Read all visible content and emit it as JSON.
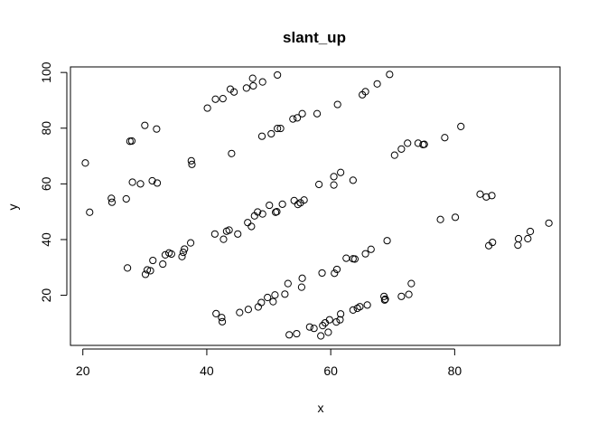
{
  "chart_data": {
    "type": "scatter",
    "title": "slant_up",
    "xlabel": "x",
    "ylabel": "y",
    "xlim": [
      18,
      97
    ],
    "ylim": [
      2,
      102
    ],
    "x_ticks": [
      20,
      40,
      60,
      80
    ],
    "y_ticks": [
      20,
      40,
      60,
      80,
      100
    ],
    "grid": false,
    "marker": "open-circle",
    "points": [
      [
        20.4,
        67.5
      ],
      [
        21.1,
        49.8
      ],
      [
        24.6,
        54.8
      ],
      [
        24.7,
        53.4
      ],
      [
        27.0,
        54.6
      ],
      [
        27.2,
        29.8
      ],
      [
        27.6,
        75.3
      ],
      [
        27.9,
        75.4
      ],
      [
        28.0,
        60.6
      ],
      [
        29.3,
        60.0
      ],
      [
        30.0,
        81.0
      ],
      [
        30.1,
        27.5
      ],
      [
        30.4,
        29.1
      ],
      [
        30.9,
        28.8
      ],
      [
        31.2,
        61.1
      ],
      [
        31.3,
        32.5
      ],
      [
        31.9,
        79.7
      ],
      [
        32.0,
        60.3
      ],
      [
        32.9,
        31.2
      ],
      [
        33.3,
        34.5
      ],
      [
        33.9,
        35.2
      ],
      [
        34.3,
        34.8
      ],
      [
        36.0,
        33.9
      ],
      [
        36.2,
        35.4
      ],
      [
        36.4,
        36.6
      ],
      [
        37.4,
        38.8
      ],
      [
        37.5,
        68.3
      ],
      [
        37.6,
        67.0
      ],
      [
        40.1,
        87.2
      ],
      [
        41.3,
        42.0
      ],
      [
        41.4,
        90.4
      ],
      [
        41.5,
        13.4
      ],
      [
        42.4,
        12.0
      ],
      [
        42.5,
        10.5
      ],
      [
        42.6,
        90.6
      ],
      [
        42.7,
        40.1
      ],
      [
        43.2,
        43.0
      ],
      [
        43.6,
        43.4
      ],
      [
        43.8,
        94.0
      ],
      [
        44.0,
        70.9
      ],
      [
        44.4,
        93.0
      ],
      [
        45.0,
        42.0
      ],
      [
        45.3,
        13.8
      ],
      [
        46.4,
        94.4
      ],
      [
        46.6,
        46.1
      ],
      [
        46.7,
        14.9
      ],
      [
        47.2,
        44.7
      ],
      [
        47.4,
        97.9
      ],
      [
        47.5,
        95.2
      ],
      [
        47.7,
        48.5
      ],
      [
        48.2,
        49.9
      ],
      [
        48.3,
        15.8
      ],
      [
        48.8,
        17.4
      ],
      [
        48.9,
        77.1
      ],
      [
        49.0,
        96.6
      ],
      [
        49.0,
        49.2
      ],
      [
        49.8,
        19.2
      ],
      [
        50.1,
        52.3
      ],
      [
        50.4,
        78.0
      ],
      [
        50.7,
        17.7
      ],
      [
        51.0,
        20.1
      ],
      [
        51.1,
        49.8
      ],
      [
        51.3,
        50.0
      ],
      [
        51.4,
        79.9
      ],
      [
        51.4,
        99.1
      ],
      [
        51.9,
        79.9
      ],
      [
        52.2,
        52.7
      ],
      [
        52.6,
        20.4
      ],
      [
        53.1,
        24.2
      ],
      [
        53.3,
        5.8
      ],
      [
        53.9,
        83.3
      ],
      [
        54.1,
        54.0
      ],
      [
        54.5,
        6.2
      ],
      [
        54.6,
        83.7
      ],
      [
        54.7,
        52.6
      ],
      [
        55.1,
        53.2
      ],
      [
        55.3,
        22.9
      ],
      [
        55.4,
        26.1
      ],
      [
        55.4,
        85.2
      ],
      [
        55.7,
        54.2
      ],
      [
        56.6,
        8.6
      ],
      [
        57.3,
        8.1
      ],
      [
        57.8,
        85.2
      ],
      [
        58.1,
        59.8
      ],
      [
        58.4,
        5.4
      ],
      [
        58.6,
        28.0
      ],
      [
        58.7,
        9.1
      ],
      [
        59.1,
        10.1
      ],
      [
        59.6,
        6.7
      ],
      [
        59.8,
        11.2
      ],
      [
        60.5,
        62.6
      ],
      [
        60.5,
        59.6
      ],
      [
        60.6,
        27.9
      ],
      [
        60.9,
        10.4
      ],
      [
        61.0,
        29.3
      ],
      [
        61.1,
        88.5
      ],
      [
        61.5,
        11.2
      ],
      [
        61.6,
        64.1
      ],
      [
        61.6,
        13.3
      ],
      [
        62.5,
        33.3
      ],
      [
        63.6,
        61.3
      ],
      [
        63.6,
        33.1
      ],
      [
        63.6,
        14.7
      ],
      [
        63.9,
        33.0
      ],
      [
        64.3,
        15.3
      ],
      [
        64.7,
        15.9
      ],
      [
        65.1,
        92.0
      ],
      [
        65.6,
        93.1
      ],
      [
        65.6,
        34.9
      ],
      [
        65.9,
        16.5
      ],
      [
        66.5,
        36.5
      ],
      [
        67.5,
        95.9
      ],
      [
        68.6,
        19.6
      ],
      [
        68.7,
        18.3
      ],
      [
        68.8,
        18.6
      ],
      [
        69.1,
        39.6
      ],
      [
        69.5,
        99.3
      ],
      [
        70.3,
        70.3
      ],
      [
        71.4,
        72.5
      ],
      [
        71.4,
        19.6
      ],
      [
        72.4,
        74.6
      ],
      [
        72.6,
        20.3
      ],
      [
        73.0,
        24.2
      ],
      [
        74.1,
        74.6
      ],
      [
        74.9,
        74.1
      ],
      [
        75.1,
        74.2
      ],
      [
        77.7,
        47.2
      ],
      [
        78.4,
        76.6
      ],
      [
        80.1,
        48.0
      ],
      [
        81.0,
        80.6
      ],
      [
        84.1,
        56.3
      ],
      [
        85.1,
        55.3
      ],
      [
        85.5,
        37.8
      ],
      [
        86.0,
        55.8
      ],
      [
        86.1,
        39.0
      ],
      [
        90.2,
        38.0
      ],
      [
        90.3,
        40.3
      ],
      [
        91.8,
        40.3
      ],
      [
        92.2,
        42.9
      ],
      [
        95.2,
        45.9
      ]
    ]
  }
}
